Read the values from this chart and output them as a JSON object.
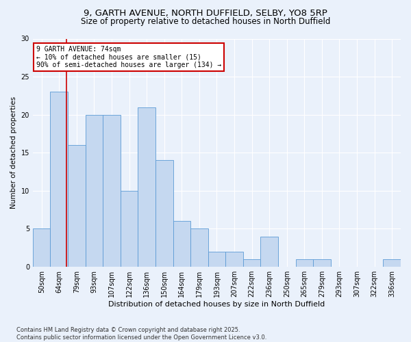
{
  "title1": "9, GARTH AVENUE, NORTH DUFFIELD, SELBY, YO8 5RP",
  "title2": "Size of property relative to detached houses in North Duffield",
  "xlabel": "Distribution of detached houses by size in North Duffield",
  "ylabel": "Number of detached properties",
  "bin_labels": [
    "50sqm",
    "64sqm",
    "79sqm",
    "93sqm",
    "107sqm",
    "122sqm",
    "136sqm",
    "150sqm",
    "164sqm",
    "179sqm",
    "193sqm",
    "207sqm",
    "222sqm",
    "236sqm",
    "250sqm",
    "265sqm",
    "279sqm",
    "293sqm",
    "307sqm",
    "322sqm",
    "336sqm"
  ],
  "values": [
    5,
    23,
    16,
    20,
    20,
    10,
    21,
    14,
    6,
    5,
    2,
    2,
    1,
    4,
    0,
    1,
    1,
    0,
    0,
    0,
    1
  ],
  "bar_color": "#c5d8f0",
  "bar_edge_color": "#5b9bd5",
  "vline_x": 1.4,
  "vline_color": "#cc0000",
  "annotation_text": "9 GARTH AVENUE: 74sqm\n← 10% of detached houses are smaller (15)\n90% of semi-detached houses are larger (134) →",
  "annotation_box_color": "#ffffff",
  "annotation_box_edge": "#cc0000",
  "ylim": [
    0,
    30
  ],
  "yticks": [
    0,
    5,
    10,
    15,
    20,
    25,
    30
  ],
  "footer": "Contains HM Land Registry data © Crown copyright and database right 2025.\nContains public sector information licensed under the Open Government Licence v3.0.",
  "bg_color": "#eaf1fb",
  "title1_fontsize": 9.5,
  "title2_fontsize": 8.5
}
